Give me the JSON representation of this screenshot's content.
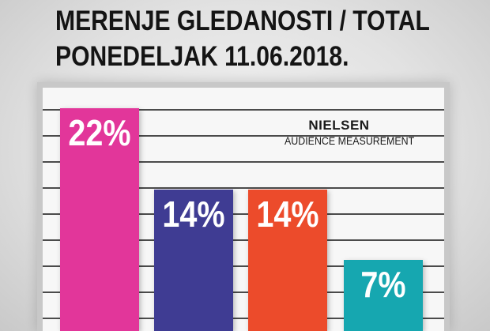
{
  "title": {
    "line1": "MERENJE GLEDANOSTI / TOTAL",
    "line2": "PONEDELJAK 11.06.2018."
  },
  "source": {
    "brand": "NIELSEN",
    "subtitle": "AUDIENCE MEASUREMENT"
  },
  "chart_data": {
    "type": "bar",
    "title": "MERENJE GLEDANOSTI / TOTAL",
    "subtitle": "PONEDELJAK 11.06.2018.",
    "categories": [
      "",
      "",
      "",
      ""
    ],
    "values": [
      22,
      14,
      14,
      7
    ],
    "value_labels": [
      "22%",
      "14%",
      "14%",
      "7%"
    ],
    "colors": [
      "#e2369a",
      "#3f3c93",
      "#ec4b2b",
      "#16a7b0"
    ],
    "unit": "%",
    "ylim": [
      0,
      25
    ],
    "grid": true
  }
}
